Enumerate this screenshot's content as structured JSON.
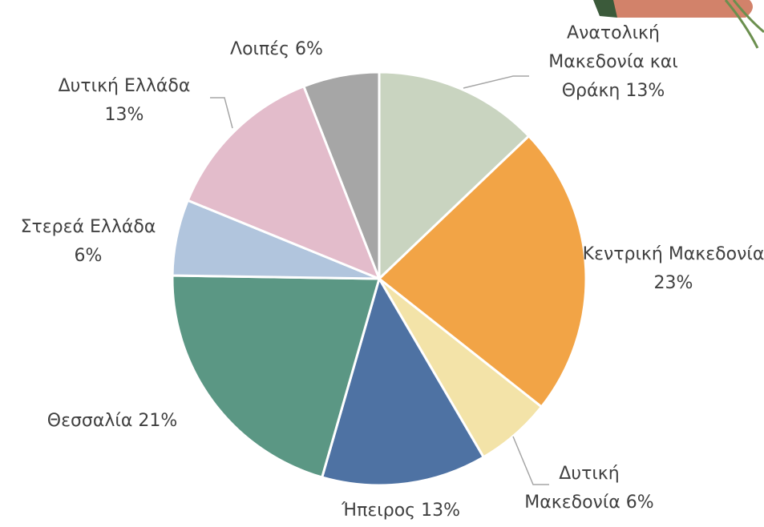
{
  "chart_data": {
    "type": "pie",
    "categories": [
      "Ανατολική Μακεδονία και Θράκη",
      "Κεντρική Μακεδονία",
      "Δυτική Μακεδονία",
      "Ήπειρος",
      "Θεσσαλία",
      "Στερεά Ελλάδα",
      "Δυτική Ελλάδα",
      "Λοιπές"
    ],
    "values": [
      13,
      23,
      6,
      13,
      21,
      6,
      13,
      6
    ],
    "value_labels": [
      "13%",
      "23%",
      "6%",
      "13%",
      "21%",
      "6%",
      "13%",
      "6%"
    ],
    "colors": [
      "#c9d4c0",
      "#f2a446",
      "#f3e3a8",
      "#4e72a3",
      "#5b9784",
      "#b1c5dd",
      "#e3bccb",
      "#a6a6a6"
    ]
  }
}
